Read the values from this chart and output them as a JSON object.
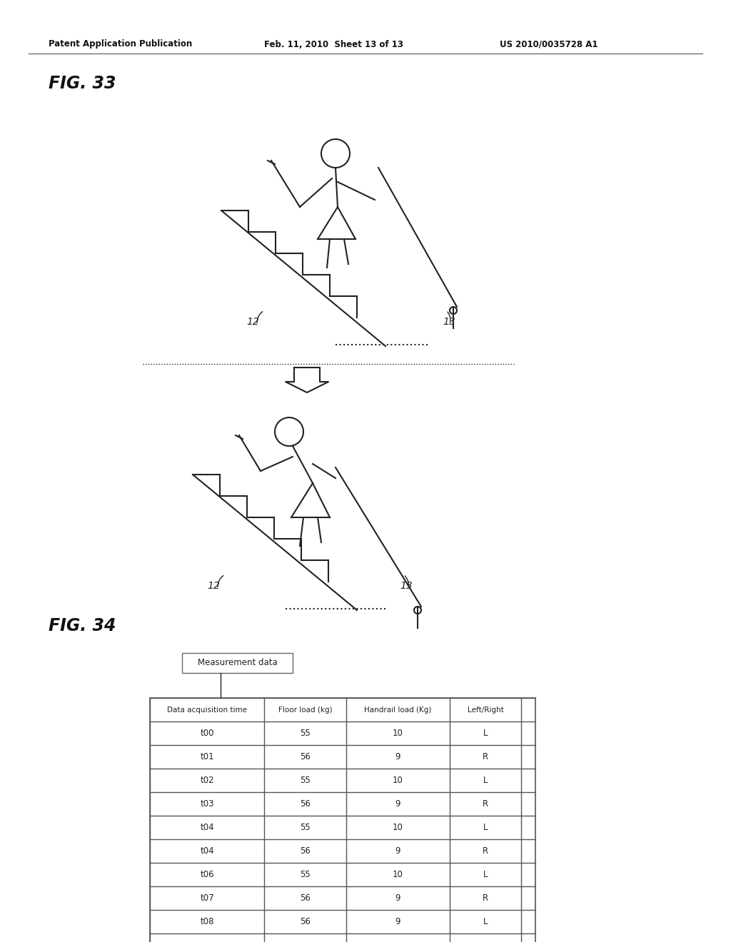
{
  "header_left": "Patent Application Publication",
  "header_mid": "Feb. 11, 2010  Sheet 13 of 13",
  "header_right": "US 2010/0035728 A1",
  "fig33_label": "FIG. 33",
  "fig34_label": "FIG. 34",
  "table_box_label": "Measurement data",
  "table_headers": [
    "Data acquisition time",
    "Floor load (kg)",
    "Handrail load (Kg)",
    "Left/Right"
  ],
  "table_rows": [
    [
      "t00",
      "55",
      "10",
      "L"
    ],
    [
      "t01",
      "56",
      "9",
      "R"
    ],
    [
      "t02",
      "55",
      "10",
      "L"
    ],
    [
      "t03",
      "56",
      "9",
      "R"
    ],
    [
      "t04",
      "55",
      "10",
      "L"
    ],
    [
      "t04",
      "56",
      "9",
      "R"
    ],
    [
      "t06",
      "55",
      "10",
      "L"
    ],
    [
      "t07",
      "56",
      "9",
      "R"
    ],
    [
      "t08",
      "56",
      "9",
      "L"
    ],
    [
      "",
      "",
      "",
      ""
    ]
  ],
  "label_12": "12",
  "label_13": "13",
  "bg_color": "#ffffff",
  "line_color": "#000000",
  "fig_label_style": "italic"
}
